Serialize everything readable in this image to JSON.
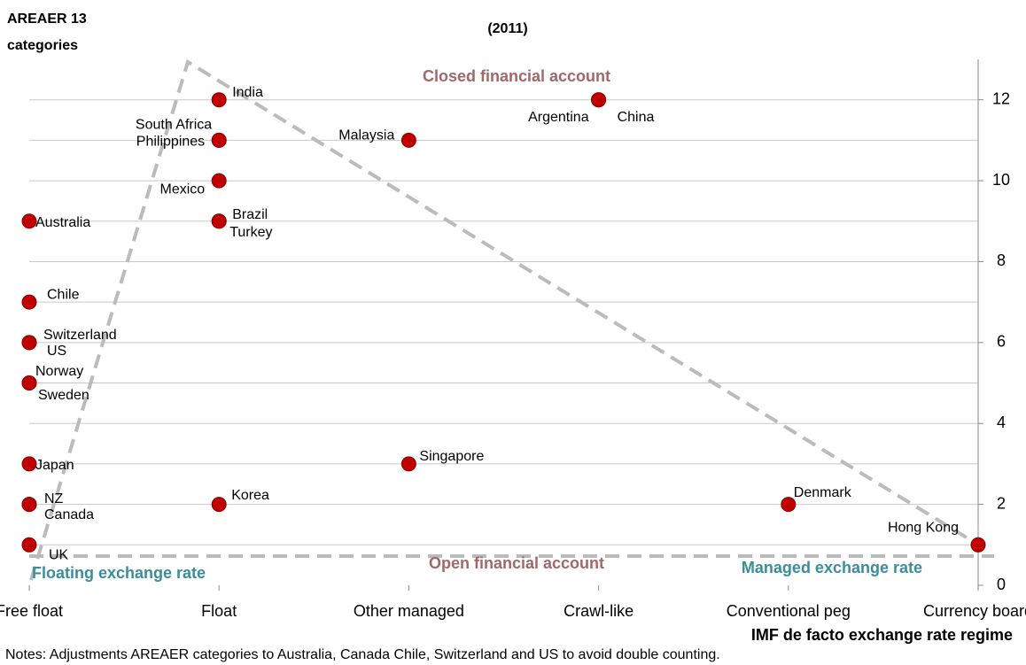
{
  "chart_data": {
    "type": "scatter",
    "title": "(2011)",
    "y_label": [
      "AREAER 13",
      "categories"
    ],
    "x_label": "IMF de facto exchange rate regime",
    "categories": [
      "Free float",
      "Float",
      "Other managed",
      "Crawl-like",
      "Conventional peg",
      "Currency board"
    ],
    "ylim": [
      0,
      13
    ],
    "yticks": [
      0,
      2,
      4,
      6,
      8,
      10,
      12
    ],
    "grid_lines": [
      1,
      2,
      3,
      4,
      5,
      6,
      7,
      8,
      9,
      10,
      11,
      12
    ],
    "color": "#c00000",
    "points": [
      {
        "label": "India",
        "x": "Float",
        "y": 12
      },
      {
        "label": "Argentina",
        "x": "Crawl-like",
        "y": 12
      },
      {
        "label": "China",
        "x": "Crawl-like",
        "y": 12
      },
      {
        "label": "South Africa",
        "x": "Float",
        "y": 11
      },
      {
        "label": "Philippines",
        "x": "Float",
        "y": 11
      },
      {
        "label": "Malaysia",
        "x": "Other managed",
        "y": 11
      },
      {
        "label": "Mexico",
        "x": "Float",
        "y": 10
      },
      {
        "label": "Brazil",
        "x": "Float",
        "y": 9
      },
      {
        "label": "Turkey",
        "x": "Float",
        "y": 9
      },
      {
        "label": "Australia",
        "x": "Free float",
        "y": 9
      },
      {
        "label": "Chile",
        "x": "Free float",
        "y": 7
      },
      {
        "label": "Switzerland",
        "x": "Free float",
        "y": 6
      },
      {
        "label": "US",
        "x": "Free float",
        "y": 6
      },
      {
        "label": "Norway",
        "x": "Free float",
        "y": 5
      },
      {
        "label": "Sweden",
        "x": "Free float",
        "y": 5
      },
      {
        "label": "Japan",
        "x": "Free float",
        "y": 3
      },
      {
        "label": "Singapore",
        "x": "Other managed",
        "y": 3
      },
      {
        "label": "NZ",
        "x": "Free float",
        "y": 2
      },
      {
        "label": "Canada",
        "x": "Free float",
        "y": 2
      },
      {
        "label": "Korea",
        "x": "Float",
        "y": 2
      },
      {
        "label": "Denmark",
        "x": "Conventional peg",
        "y": 2
      },
      {
        "label": "UK",
        "x": "Free float",
        "y": 1
      },
      {
        "label": "Hong Kong",
        "x": "Currency board",
        "y": 1
      }
    ],
    "annotations": [
      "Closed financial account",
      "Open financial account",
      "Floating exchange rate",
      "Managed exchange rate"
    ],
    "note": "Notes: Adjustments AREAER categories to Australia, Canada Chile, Switzerland and US  to avoid double counting."
  }
}
